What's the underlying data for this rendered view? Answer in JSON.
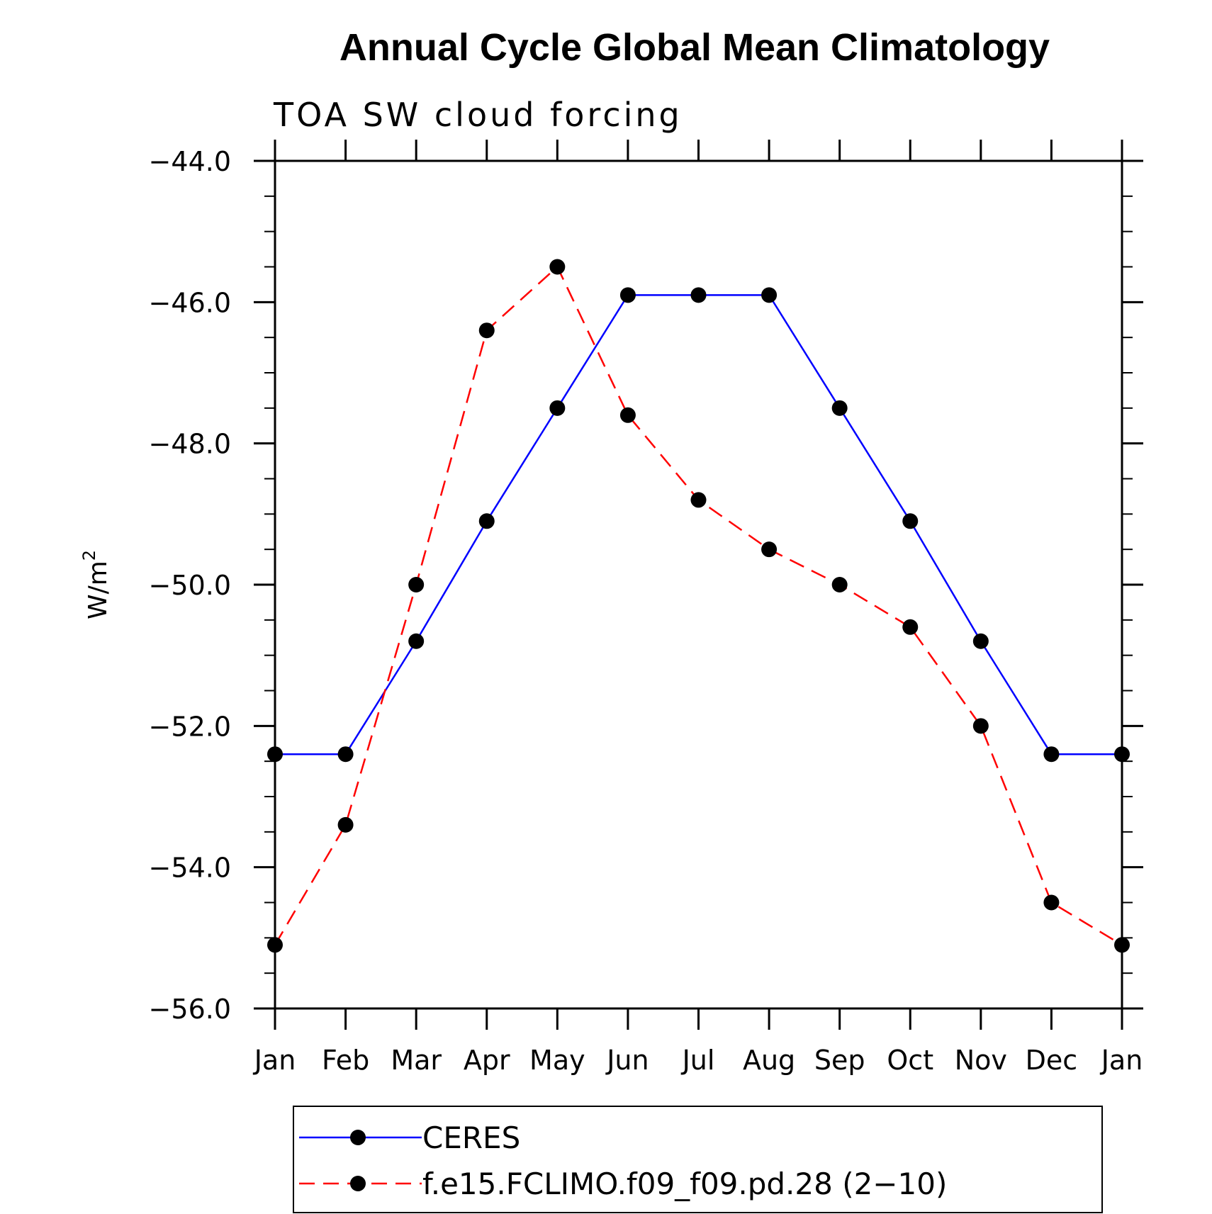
{
  "chart_data": {
    "type": "line",
    "title": "Annual Cycle Global Mean Climatology",
    "subtitle": "TOA SW cloud forcing",
    "ylabel": "W/m",
    "ylabel_sup": "2",
    "xlabel": "",
    "categories": [
      "Jan",
      "Feb",
      "Mar",
      "Apr",
      "May",
      "Jun",
      "Jul",
      "Aug",
      "Sep",
      "Oct",
      "Nov",
      "Dec",
      "Jan"
    ],
    "ylim": [
      -56.0,
      -44.0
    ],
    "yticks": [
      -44.0,
      -46.0,
      -48.0,
      -50.0,
      -52.0,
      -54.0,
      -56.0
    ],
    "ytick_labels": [
      "−44.0",
      "−46.0",
      "−48.0",
      "−50.0",
      "−52.0",
      "−54.0",
      "−56.0"
    ],
    "grid": false,
    "legend_position": "bottom",
    "series": [
      {
        "name": "CERES",
        "color": "#0000ff",
        "line_style": "solid",
        "marker": "filled-circle",
        "values": [
          -52.4,
          -52.4,
          -50.8,
          -49.1,
          -47.5,
          -45.9,
          -45.9,
          -45.9,
          -47.5,
          -49.1,
          -50.8,
          -52.4,
          -52.4
        ]
      },
      {
        "name": "f.e15.FCLIMO.f09_f09.pd.28 (2−10)",
        "color": "#ff0000",
        "line_style": "dashed",
        "marker": "filled-circle",
        "values": [
          -55.1,
          -53.4,
          -50.0,
          -46.4,
          -45.5,
          -47.6,
          -48.8,
          -49.5,
          -50.0,
          -50.6,
          -52.0,
          -54.5,
          -55.1
        ]
      }
    ]
  }
}
